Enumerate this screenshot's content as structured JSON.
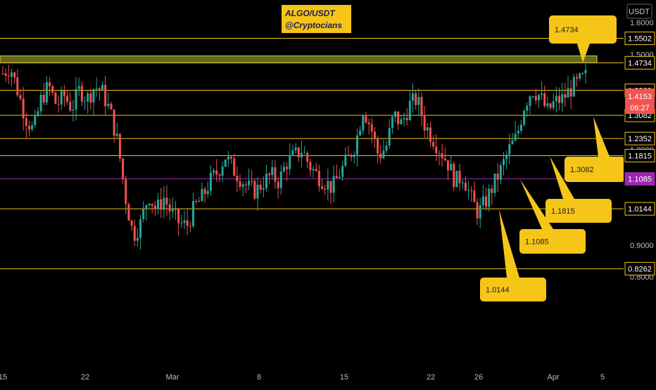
{
  "chart_data": {
    "type": "candlestick",
    "title": "ALGO/USDT",
    "subtitle": "@Cryptocians",
    "currency_label": "USDT",
    "price_axis_ticks": [
      "1.6000",
      "1.5000",
      "1.2000",
      "0.9000",
      "0.8000"
    ],
    "time_axis_ticks": [
      "15",
      "22",
      "Mar",
      "8",
      "15",
      "22",
      "26",
      "Apr",
      "5"
    ],
    "current_price": "1.4153",
    "countdown": "06:27",
    "levels": [
      {
        "value": "1.5502",
        "color": "#f5c518"
      },
      {
        "value": "1.4734",
        "color": "#f5c518"
      },
      {
        "value": "1.3869",
        "color": "#f5c518"
      },
      {
        "value": "1.3082",
        "color": "#f5c518"
      },
      {
        "value": "1.2352",
        "color": "#f5c518"
      },
      {
        "value": "1.1815",
        "color": "#f5c518"
      },
      {
        "value": "1.1085",
        "color": "#9c27b0"
      },
      {
        "value": "1.0144",
        "color": "#f5c518"
      },
      {
        "value": "0.8262",
        "color": "#f5c518"
      }
    ],
    "resistance_zone": {
      "low": 1.4734,
      "high": 1.495
    },
    "callouts": [
      "1.4734",
      "1.3082",
      "1.1815",
      "1.1085",
      "1.0144"
    ],
    "close_series": [
      1.44,
      1.46,
      1.38,
      1.3,
      1.26,
      1.36,
      1.4,
      1.34,
      1.37,
      1.33,
      1.39,
      1.36,
      1.4,
      1.38,
      1.32,
      1.22,
      1.05,
      0.93,
      0.97,
      1.06,
      1.01,
      1.05,
      1.0,
      0.97,
      0.96,
      1.02,
      1.05,
      1.1,
      1.13,
      1.18,
      1.14,
      1.11,
      1.08,
      1.07,
      1.1,
      1.12,
      1.1,
      1.16,
      1.18,
      1.2,
      1.15,
      1.12,
      1.1,
      1.08,
      1.13,
      1.17,
      1.22,
      1.33,
      1.27,
      1.18,
      1.21,
      1.31,
      1.28,
      1.34,
      1.36,
      1.28,
      1.24,
      1.2,
      1.16,
      1.1,
      1.12,
      1.05,
      1.0,
      1.04,
      1.09,
      1.14,
      1.2,
      1.24,
      1.34,
      1.39,
      1.37,
      1.32,
      1.35,
      1.36,
      1.39,
      1.41,
      1.43
    ],
    "colors": {
      "up": "#26a69a",
      "down": "#ef5350",
      "accent": "#f5c518",
      "price_badge": "#f05350"
    }
  }
}
